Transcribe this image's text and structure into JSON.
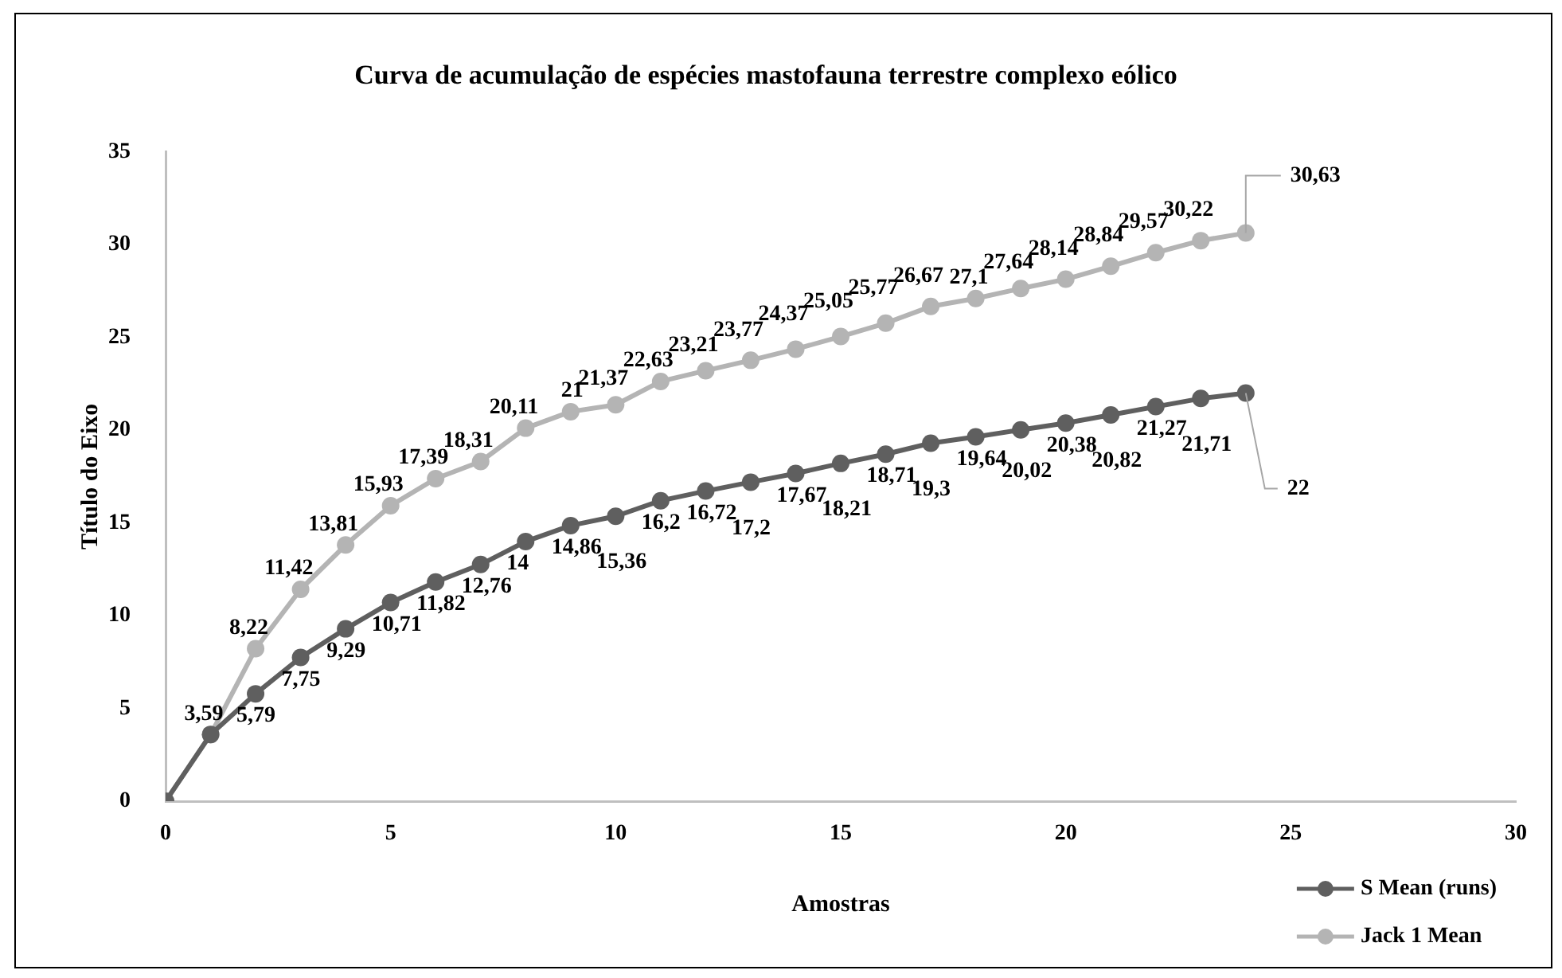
{
  "chart_data": {
    "type": "line",
    "title": "Curva de acumulação de espécies mastofauna terrestre complexo eólico",
    "xlabel": "Amostras",
    "ylabel": "Título do Eixo",
    "x": [
      0,
      1,
      2,
      3,
      4,
      5,
      6,
      7,
      8,
      9,
      10,
      11,
      12,
      13,
      14,
      15,
      16,
      17,
      18,
      19,
      20,
      21,
      22,
      23,
      24
    ],
    "series": [
      {
        "name": "S Mean (runs)",
        "color": "#5f5f5f",
        "values": [
          0,
          3.6,
          5.79,
          7.75,
          9.29,
          10.71,
          11.82,
          12.76,
          14,
          14.86,
          15.36,
          16.2,
          16.72,
          17.2,
          17.67,
          18.21,
          18.71,
          19.3,
          19.64,
          20.02,
          20.38,
          20.82,
          21.27,
          21.71,
          22
        ],
        "value_labels": [
          null,
          null,
          "5,79",
          "7,75",
          "9,29",
          "10,71",
          "11,82",
          "12,76",
          "14",
          "14,86",
          "15,36",
          "16,2",
          "16,72",
          "17,2",
          "17,67",
          "18,21",
          "18,71",
          "19,3",
          "19,64",
          "20,02",
          "20,38",
          "20,82",
          "21,27",
          "21,71",
          "22"
        ]
      },
      {
        "name": "Jack 1 Mean",
        "color": "#b4b4b4",
        "values": [
          0,
          3.59,
          8.22,
          11.42,
          13.81,
          15.93,
          17.39,
          18.31,
          20.11,
          21,
          21.37,
          22.63,
          23.21,
          23.77,
          24.37,
          25.05,
          25.77,
          26.67,
          27.1,
          27.64,
          28.14,
          28.84,
          29.57,
          30.22,
          30.63
        ],
        "value_labels": [
          null,
          "3,59",
          "8,22",
          "11,42",
          "13,81",
          "15,93",
          "17,39",
          "18,31",
          "20,11",
          "21",
          "21,37",
          "22,63",
          "23,21",
          "23,77",
          "24,37",
          "25,05",
          "25,77",
          "26,67",
          "27,1",
          "27,64",
          "28,14",
          "28,84",
          "29,57",
          "30,22",
          "30,63"
        ]
      }
    ],
    "xlim": [
      0,
      30
    ],
    "xticks": [
      0,
      5,
      10,
      15,
      20,
      25,
      30
    ],
    "ylim": [
      0,
      35
    ],
    "yticks": [
      0,
      5,
      10,
      15,
      20,
      25,
      30,
      35
    ],
    "legend": "bottom right",
    "marker": "circle",
    "line_style": "solid"
  }
}
